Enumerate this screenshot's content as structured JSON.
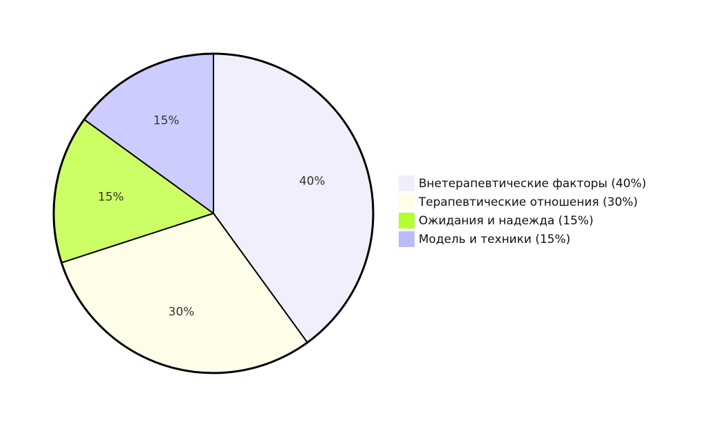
{
  "chart_data": {
    "type": "pie",
    "title": "",
    "start_angle_deg": 0,
    "direction": "clockwise",
    "center": [
      310,
      310
    ],
    "radius": 232,
    "categories": [
      "Внетерапевтические факторы",
      "Терапевтические отношения",
      "Ожидания и надежда",
      "Модель и техники"
    ],
    "values": [
      40,
      30,
      15,
      15
    ],
    "slice_labels": [
      "40%",
      "30%",
      "15%",
      "15%"
    ],
    "colors": [
      "#f0f0fd",
      "#fefee8",
      "#ccff66",
      "#ccccff"
    ],
    "legend_colors": [
      "#eeeefc",
      "#fefee6",
      "#b2ff33",
      "#bbbbf8"
    ],
    "legend": {
      "position": "right",
      "entries": [
        "Внетерапевтические факторы (40%)",
        "Терапевтические отношения (30%)",
        "Ожидания и надежда (15%)",
        "Модель и техники (15%)"
      ]
    },
    "stroke": "#000000"
  }
}
